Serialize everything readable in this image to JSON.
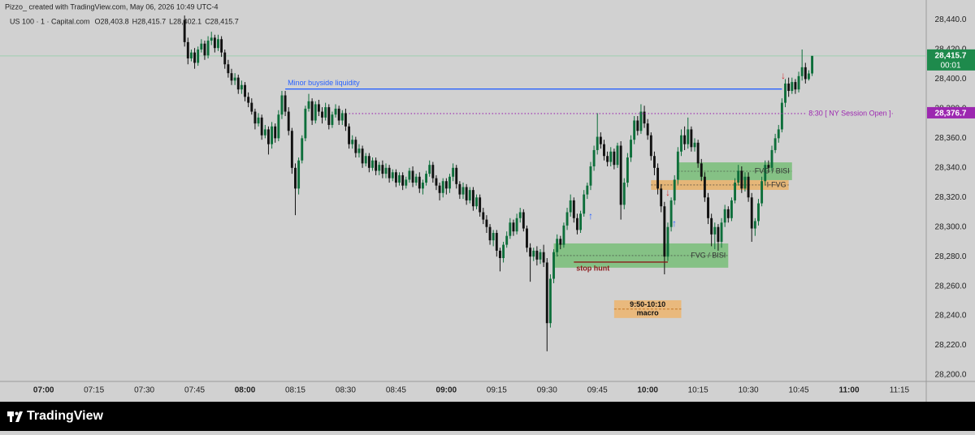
{
  "header": {
    "credit": "Pizzo_ created with TradingView.com, May 06, 2026 10:49 UTC-4"
  },
  "chart_data": {
    "type": "candlestick",
    "title": "US 100 · 1 · Capital.com",
    "ohlc_legend": [
      "O28,403.8",
      "H28,415.7",
      "L28,402.1",
      "C28,415.7"
    ],
    "x": [
      "07:42",
      "07:43",
      "07:44",
      "07:45",
      "07:46",
      "07:47",
      "07:48",
      "07:49",
      "07:50",
      "07:51",
      "07:52",
      "07:53",
      "07:54",
      "07:55",
      "07:56",
      "07:57",
      "07:58",
      "07:59",
      "08:00",
      "08:01",
      "08:02",
      "08:03",
      "08:04",
      "08:05",
      "08:06",
      "08:07",
      "08:08",
      "08:09",
      "08:10",
      "08:11",
      "08:12",
      "08:13",
      "08:14",
      "08:15",
      "08:16",
      "08:17",
      "08:18",
      "08:19",
      "08:20",
      "08:21",
      "08:22",
      "08:23",
      "08:24",
      "08:25",
      "08:26",
      "08:27",
      "08:28",
      "08:29",
      "08:30",
      "08:31",
      "08:32",
      "08:33",
      "08:34",
      "08:35",
      "08:36",
      "08:37",
      "08:38",
      "08:39",
      "08:40",
      "08:41",
      "08:42",
      "08:43",
      "08:44",
      "08:45",
      "08:46",
      "08:47",
      "08:48",
      "08:49",
      "08:50",
      "08:51",
      "08:52",
      "08:53",
      "08:54",
      "08:55",
      "08:56",
      "08:57",
      "08:58",
      "08:59",
      "09:00",
      "09:01",
      "09:02",
      "09:03",
      "09:04",
      "09:05",
      "09:06",
      "09:07",
      "09:08",
      "09:09",
      "09:10",
      "09:11",
      "09:12",
      "09:13",
      "09:14",
      "09:15",
      "09:16",
      "09:17",
      "09:18",
      "09:19",
      "09:20",
      "09:21",
      "09:22",
      "09:23",
      "09:24",
      "09:25",
      "09:26",
      "09:27",
      "09:28",
      "09:29",
      "09:30",
      "09:31",
      "09:32",
      "09:33",
      "09:34",
      "09:35",
      "09:36",
      "09:37",
      "09:38",
      "09:39",
      "09:40",
      "09:41",
      "09:42",
      "09:43",
      "09:44",
      "09:45",
      "09:46",
      "09:47",
      "09:48",
      "09:49",
      "09:50",
      "09:51",
      "09:52",
      "09:53",
      "09:54",
      "09:55",
      "09:56",
      "09:57",
      "09:58",
      "09:59",
      "10:00",
      "10:01",
      "10:02",
      "10:03",
      "10:04",
      "10:05",
      "10:06",
      "10:07",
      "10:08",
      "10:09",
      "10:10",
      "10:11",
      "10:12",
      "10:13",
      "10:14",
      "10:15",
      "10:16",
      "10:17",
      "10:18",
      "10:19",
      "10:20",
      "10:21",
      "10:22",
      "10:23",
      "10:24",
      "10:25",
      "10:26",
      "10:27",
      "10:28",
      "10:29",
      "10:30",
      "10:31",
      "10:32",
      "10:33",
      "10:34",
      "10:35",
      "10:36",
      "10:37",
      "10:38",
      "10:39",
      "10:40",
      "10:41",
      "10:42",
      "10:43",
      "10:44",
      "10:45",
      "10:46",
      "10:47",
      "10:48",
      "10:49"
    ],
    "open": [
      28440,
      28425,
      28414,
      28418,
      28411,
      28420,
      28424,
      28416,
      28426,
      28428,
      28421,
      28427,
      28418,
      28410,
      28404,
      28399,
      28401,
      28393,
      28396,
      28388,
      28384,
      28378,
      28370,
      28374,
      28362,
      28366,
      28356,
      28368,
      28360,
      28376,
      28389,
      28378,
      28365,
      28340,
      28326,
      28345,
      28360,
      28380,
      28385,
      28372,
      28383,
      28378,
      28374,
      28381,
      28369,
      28376,
      28380,
      28372,
      28377,
      28368,
      28356,
      28359,
      28350,
      28353,
      28343,
      28348,
      28340,
      28345,
      28338,
      28342,
      28336,
      28340,
      28333,
      28337,
      28330,
      28335,
      28328,
      28332,
      28338,
      28330,
      28334,
      28326,
      28330,
      28336,
      28342,
      28333,
      28328,
      28323,
      28331,
      28326,
      28334,
      28340,
      28329,
      28322,
      28327,
      28318,
      28325,
      28314,
      28320,
      28310,
      28305,
      28300,
      28291,
      28296,
      28284,
      28279,
      28288,
      28294,
      28303,
      28297,
      28306,
      28310,
      28299,
      28286,
      28280,
      28284,
      28278,
      28283,
      28276,
      28235,
      28265,
      28283,
      28292,
      28288,
      28301,
      28310,
      28318,
      28306,
      28298,
      28309,
      28322,
      28328,
      28341,
      28352,
      28361,
      28356,
      28348,
      28344,
      28351,
      28342,
      28355,
      28315,
      28330,
      28347,
      28359,
      28372,
      28365,
      28378,
      28370,
      28362,
      28348,
      28340,
      28326,
      28314,
      28280,
      28300,
      28318,
      28332,
      28351,
      28362,
      28356,
      28366,
      28354,
      28357,
      28343,
      28334,
      28320,
      28306,
      28295,
      28300,
      28290,
      28303,
      28312,
      28306,
      28318,
      28330,
      28338,
      28326,
      28334,
      28320,
      28299,
      28304,
      28316,
      28331,
      28342,
      28340,
      28352,
      28360,
      28366,
      28384,
      28397,
      28392,
      28398,
      28393,
      28402,
      28408,
      28400,
      28403.8
    ],
    "high": [
      28443,
      28428,
      28420,
      28421,
      28422,
      28427,
      28426,
      28429,
      28432,
      28430,
      28430,
      28429,
      28420,
      28413,
      28407,
      28404,
      28403,
      28399,
      28398,
      28391,
      28387,
      28380,
      28377,
      28376,
      28369,
      28368,
      28371,
      28370,
      28379,
      28392,
      28392,
      28381,
      28367,
      28343,
      28347,
      28362,
      28382,
      28390,
      28387,
      28385,
      28386,
      28381,
      28384,
      28383,
      28378,
      28383,
      28382,
      28379,
      28380,
      28370,
      28362,
      28361,
      28356,
      28355,
      28350,
      28350,
      28347,
      28347,
      28344,
      28345,
      28343,
      28342,
      28339,
      28339,
      28337,
      28337,
      28334,
      28340,
      28341,
      28336,
      28337,
      28332,
      28338,
      28345,
      28344,
      28335,
      28330,
      28333,
      28333,
      28336,
      28343,
      28342,
      28331,
      28330,
      28329,
      28327,
      28327,
      28322,
      28322,
      28313,
      28308,
      28302,
      28298,
      28298,
      28286,
      28290,
      28297,
      28306,
      28305,
      28309,
      28313,
      28312,
      28301,
      28289,
      28286,
      28287,
      28285,
      28288,
      28279,
      28268,
      28285,
      28295,
      28294,
      28303,
      28313,
      28322,
      28320,
      28309,
      28311,
      28325,
      28330,
      28344,
      28355,
      28377,
      28364,
      28359,
      28351,
      28354,
      28353,
      28357,
      28358,
      28333,
      28350,
      28362,
      28375,
      28375,
      28383,
      28382,
      28373,
      28364,
      28351,
      28343,
      28329,
      28317,
      28303,
      28320,
      28335,
      28354,
      28366,
      28368,
      28374,
      28368,
      28360,
      28359,
      28346,
      28337,
      28323,
      28309,
      28303,
      28302,
      28306,
      28315,
      28314,
      28320,
      28333,
      28342,
      28341,
      28337,
      28337,
      28323,
      28306,
      28319,
      28334,
      28345,
      28345,
      28355,
      28363,
      28369,
      28387,
      28400,
      28401,
      28401,
      28400,
      28405,
      28420,
      28411,
      28406,
      28415.7
    ],
    "low": [
      28422,
      28410,
      28412,
      28407,
      28409,
      28418,
      28413,
      28414,
      28423,
      28418,
      28419,
      28415,
      28407,
      28401,
      28396,
      28396,
      28390,
      28390,
      28385,
      28381,
      28376,
      28366,
      28368,
      28359,
      28360,
      28349,
      28353,
      28357,
      28358,
      28373,
      28375,
      28362,
      28336,
      28308,
      28322,
      28343,
      28358,
      28378,
      28369,
      28370,
      28375,
      28370,
      28372,
      28366,
      28367,
      28374,
      28369,
      28369,
      28365,
      28353,
      28353,
      28347,
      28347,
      28340,
      28341,
      28337,
      28338,
      28335,
      28335,
      28333,
      28333,
      28330,
      28331,
      28327,
      28328,
      28325,
      28326,
      28330,
      28327,
      28328,
      28323,
      28322,
      28328,
      28334,
      28330,
      28325,
      28318,
      28320,
      28322,
      28323,
      28331,
      28326,
      28319,
      28319,
      28315,
      28316,
      28311,
      28312,
      28307,
      28302,
      28296,
      28288,
      28287,
      28280,
      28270,
      28276,
      28286,
      28292,
      28294,
      28295,
      28303,
      28297,
      28283,
      28263,
      28277,
      28274,
      28275,
      28273,
      28216,
      28232,
      28262,
      28280,
      28285,
      28286,
      28298,
      28307,
      28303,
      28295,
      28296,
      28307,
      28319,
      28325,
      28338,
      28349,
      28353,
      28345,
      28341,
      28341,
      28339,
      28340,
      28305,
      28312,
      28327,
      28344,
      28356,
      28362,
      28363,
      28367,
      28359,
      28345,
      28335,
      28322,
      28310,
      28268,
      28277,
      28297,
      28315,
      28329,
      28348,
      28352,
      28353,
      28351,
      28351,
      28340,
      28331,
      28317,
      28302,
      28287,
      28285,
      28284,
      28286,
      28300,
      28303,
      28304,
      28316,
      28328,
      28323,
      28324,
      28317,
      28290,
      28294,
      28301,
      28314,
      28328,
      28337,
      28338,
      28350,
      28357,
      28364,
      28381,
      28388,
      28390,
      28390,
      28391,
      28399,
      28397,
      28399,
      28402.1
    ],
    "close": [
      28425,
      28414,
      28418,
      28411,
      28420,
      28424,
      28416,
      28426,
      28428,
      28421,
      28427,
      28418,
      28410,
      28404,
      28399,
      28401,
      28393,
      28396,
      28388,
      28384,
      28378,
      28370,
      28374,
      28362,
      28366,
      28356,
      28368,
      28360,
      28376,
      28389,
      28378,
      28365,
      28340,
      28326,
      28345,
      28360,
      28380,
      28385,
      28372,
      28383,
      28378,
      28374,
      28381,
      28369,
      28376,
      28380,
      28372,
      28377,
      28368,
      28356,
      28359,
      28350,
      28353,
      28343,
      28348,
      28340,
      28345,
      28338,
      28342,
      28336,
      28340,
      28333,
      28337,
      28330,
      28335,
      28328,
      28332,
      28338,
      28330,
      28334,
      28326,
      28330,
      28336,
      28342,
      28333,
      28328,
      28323,
      28331,
      28326,
      28334,
      28340,
      28329,
      28322,
      28327,
      28318,
      28325,
      28314,
      28320,
      28310,
      28305,
      28300,
      28291,
      28296,
      28284,
      28279,
      28288,
      28294,
      28303,
      28297,
      28306,
      28310,
      28299,
      28286,
      28280,
      28284,
      28278,
      28283,
      28276,
      28235,
      28265,
      28283,
      28292,
      28288,
      28301,
      28310,
      28318,
      28306,
      28298,
      28309,
      28322,
      28328,
      28341,
      28352,
      28361,
      28356,
      28348,
      28344,
      28351,
      28342,
      28355,
      28315,
      28330,
      28347,
      28359,
      28372,
      28365,
      28378,
      28370,
      28362,
      28348,
      28340,
      28326,
      28314,
      28280,
      28300,
      28318,
      28332,
      28351,
      28362,
      28356,
      28366,
      28354,
      28357,
      28343,
      28334,
      28320,
      28306,
      28295,
      28300,
      28290,
      28303,
      28312,
      28306,
      28318,
      28330,
      28338,
      28326,
      28334,
      28320,
      28299,
      28304,
      28316,
      28331,
      28342,
      28340,
      28352,
      28360,
      28366,
      28384,
      28397,
      28392,
      28398,
      28393,
      28402,
      28408,
      28400,
      28403.8,
      28415.7
    ],
    "up_color": "#0d6e3a",
    "down_color": "#111111",
    "xlim": [
      "06:47",
      "11:23"
    ],
    "xticks": [
      "07:00",
      "07:15",
      "07:30",
      "07:45",
      "08:00",
      "08:15",
      "08:30",
      "08:45",
      "09:00",
      "09:15",
      "09:30",
      "09:45",
      "10:00",
      "10:15",
      "10:30",
      "10:45",
      "11:00",
      "11:15"
    ],
    "ylim": [
      28195.6,
      28442.5
    ],
    "yticks": [
      {
        "value": 28200,
        "label": "28,200.0"
      },
      {
        "value": 28220,
        "label": "28,220.0"
      },
      {
        "value": 28240,
        "label": "28,240.0"
      },
      {
        "value": 28260,
        "label": "28,260.0"
      },
      {
        "value": 28280,
        "label": "28,280.0"
      },
      {
        "value": 28300,
        "label": "28,300.0"
      },
      {
        "value": 28320,
        "label": "28,320.0"
      },
      {
        "value": 28340,
        "label": "28,340.0"
      },
      {
        "value": 28360,
        "label": "28,360.0"
      },
      {
        "value": 28380,
        "label": "28,380.0"
      },
      {
        "value": 28400,
        "label": "28,400.0"
      },
      {
        "value": 28420,
        "label": "28,420.0"
      },
      {
        "value": 28440,
        "label": "28,440.0"
      }
    ],
    "grid": false,
    "price_labels": [
      {
        "value": 28415.7,
        "label": "28,415.7",
        "sub": "00:01",
        "color": "#1e8a4c"
      },
      {
        "value": 28376.7,
        "label": "28,376.7",
        "color": "#9c27b0"
      }
    ],
    "levels": [
      {
        "label": "Minor buyside liquidity",
        "value": 28393.3,
        "from": "08:12",
        "to": "10:40",
        "color": "#2962ff",
        "style": "solid"
      },
      {
        "label": "8:30 [ NY Session Open ]",
        "value": 28376.7,
        "from": "08:31",
        "to": "11:13",
        "color": "#9c27b0",
        "style": "dotted"
      },
      {
        "label": "stop hunt",
        "value": 28276.3,
        "from": "09:38",
        "to": "10:06",
        "color": "#8b1a1a",
        "style": "solid"
      }
    ],
    "zones": [
      {
        "label": "FVG / BISI",
        "from": "09:32",
        "to": "10:24",
        "top": 28288.9,
        "bottom": 28272.5,
        "color": "#5cb85c"
      },
      {
        "label": "FVG / BISI",
        "from": "10:09",
        "to": "10:43",
        "top": 28343.7,
        "bottom": 28331.7,
        "color": "#5cb85c"
      },
      {
        "label": "I-FVG",
        "from": "10:01",
        "to": "10:42",
        "top": 28331.7,
        "bottom": 28325.1,
        "color": "#f0a848"
      }
    ],
    "macro": {
      "lines": [
        "9:50-10:10",
        "macro"
      ],
      "from": "09:50",
      "to": "10:10",
      "top": 28250.5,
      "bottom": 28238.5,
      "color": "#f0b060"
    }
  },
  "footer": {
    "brand": "TradingView"
  }
}
